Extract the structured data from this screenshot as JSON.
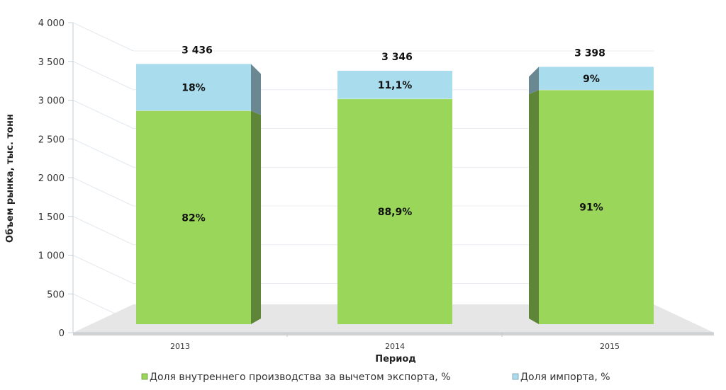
{
  "chart_data": {
    "type": "bar",
    "stacked": true,
    "categories": [
      "2013",
      "2014",
      "2015"
    ],
    "totals": [
      3436,
      3346,
      3398
    ],
    "total_labels": [
      "3 436",
      "3 346",
      "3 398"
    ],
    "series": [
      {
        "name": "Доля внутреннего производства за вычетом экспорта, %",
        "share": [
          82,
          88.9,
          91
        ],
        "labels": [
          "82%",
          "88,9%",
          "91%"
        ],
        "color": "#9ad65a"
      },
      {
        "name": "Доля импорта, %",
        "share": [
          18,
          11.1,
          9
        ],
        "labels": [
          "18%",
          "11,1%",
          "9%"
        ],
        "color": "#a9dcec"
      }
    ],
    "xlabel": "Период",
    "ylabel": "Объем рынка, тыс. тонн",
    "ylim": [
      0,
      4000
    ],
    "yticks": [
      0,
      500,
      1000,
      1500,
      2000,
      2500,
      3000,
      3500,
      4000
    ],
    "ytick_labels": [
      "0",
      "500",
      "1 000",
      "1 500",
      "2 000",
      "2 500",
      "3 000",
      "3 500",
      "4 000"
    ],
    "grid": true,
    "legend_position": "bottom"
  }
}
